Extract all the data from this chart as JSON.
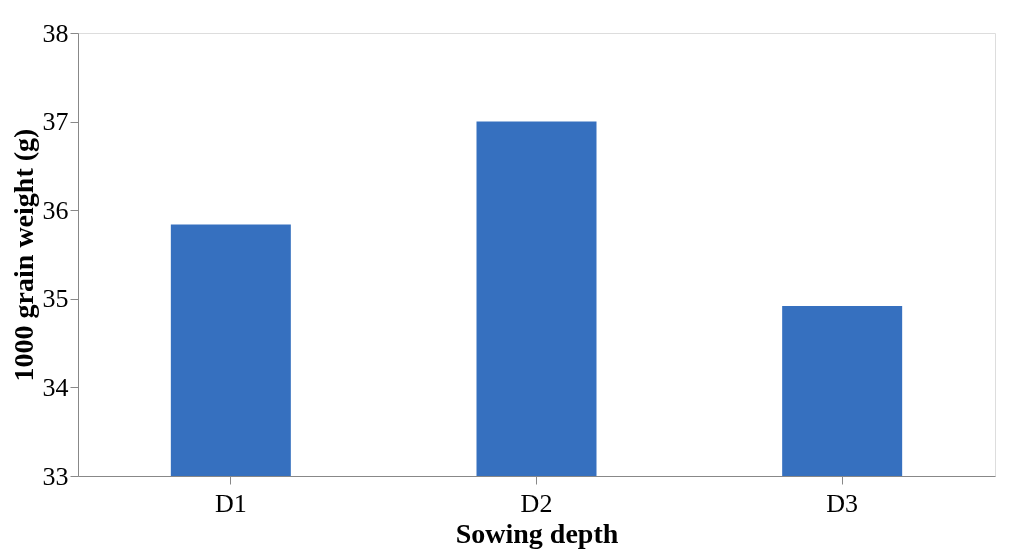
{
  "chart_data": {
    "type": "bar",
    "xlabel": "Sowing depth",
    "ylabel": "1000 grain weight (g)",
    "categories": [
      "D1",
      "D2",
      "D3"
    ],
    "values": [
      35.84,
      37.0,
      34.92
    ],
    "color": "#3670bf",
    "ylim": [
      33,
      38
    ],
    "yticks": [
      33,
      34,
      35,
      36,
      37,
      38
    ],
    "grid": false
  }
}
